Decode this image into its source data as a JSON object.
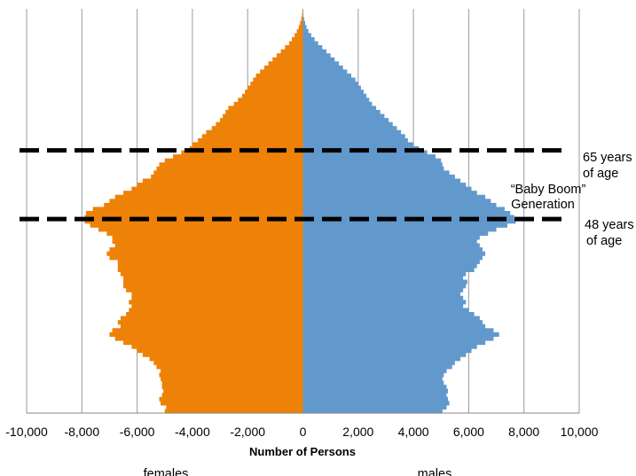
{
  "chart_data": {
    "type": "bar",
    "orientation": "horizontal",
    "title": "",
    "xlabel": "Number of Persons",
    "ylabel": "",
    "xlim": [
      -10000,
      10000
    ],
    "xticks": [
      -10000,
      -8000,
      -6000,
      -4000,
      -2000,
      0,
      2000,
      4000,
      6000,
      8000,
      10000
    ],
    "xtick_labels": [
      "-10,000",
      "-8,000",
      "-6,000",
      "-4,000",
      "-2,000",
      "0",
      "2,000",
      "4,000",
      "6,000",
      "8,000",
      "10,000"
    ],
    "grid": "vertical",
    "legend": "none",
    "side_labels": {
      "left": "females",
      "right": "males"
    },
    "annotations": {
      "line_65": "65 years of age",
      "line_65_lines": [
        "65 years",
        "of age"
      ],
      "line_48": "48 years of age",
      "line_48_lines": [
        "48 years",
        "of age"
      ],
      "baby_boom_lines": [
        "“Baby Boom”",
        "Generation"
      ]
    },
    "reference_lines_age": [
      65,
      48
    ],
    "age_range": [
      0,
      100
    ],
    "series": [
      {
        "name": "females",
        "color": "#ee8208",
        "values": [
          -5000,
          -4950,
          -5150,
          -5200,
          -5100,
          -5050,
          -5100,
          -5100,
          -5150,
          -5200,
          -5150,
          -5300,
          -5400,
          -5550,
          -5800,
          -6000,
          -6200,
          -6500,
          -6800,
          -7000,
          -6900,
          -6600,
          -6700,
          -6600,
          -6400,
          -6300,
          -6200,
          -6300,
          -6200,
          -6200,
          -6400,
          -6500,
          -6500,
          -6500,
          -6600,
          -6700,
          -6700,
          -6700,
          -7000,
          -7100,
          -7000,
          -6800,
          -6900,
          -6900,
          -7100,
          -7400,
          -7700,
          -7900,
          -7900,
          -7850,
          -7600,
          -7200,
          -7000,
          -6800,
          -6500,
          -6200,
          -6000,
          -5800,
          -5500,
          -5400,
          -5300,
          -5200,
          -5000,
          -4700,
          -4400,
          -4100,
          -4000,
          -3800,
          -3650,
          -3500,
          -3300,
          -3150,
          -3000,
          -2900,
          -2800,
          -2700,
          -2500,
          -2350,
          -2200,
          -2100,
          -2000,
          -1900,
          -1800,
          -1700,
          -1550,
          -1400,
          -1250,
          -1100,
          -950,
          -800,
          -650,
          -500,
          -400,
          -300,
          -220,
          -150,
          -100,
          -60,
          -30,
          -10
        ]
      },
      {
        "name": "males",
        "color": "#6299cd",
        "values": [
          5050,
          5200,
          5300,
          5250,
          5200,
          5250,
          5200,
          5100,
          5050,
          5100,
          5200,
          5400,
          5500,
          5700,
          5900,
          6100,
          6300,
          6600,
          6900,
          7100,
          6900,
          6600,
          6500,
          6400,
          6200,
          6000,
          5800,
          5900,
          5800,
          5700,
          5800,
          5900,
          5950,
          5800,
          5900,
          6200,
          6300,
          6400,
          6500,
          6600,
          6500,
          6400,
          6300,
          6400,
          6700,
          7000,
          7400,
          7700,
          7650,
          7500,
          7300,
          7000,
          6800,
          6600,
          6300,
          6100,
          5900,
          5700,
          5500,
          5300,
          5100,
          5050,
          5000,
          4800,
          4500,
          4200,
          4000,
          3800,
          3700,
          3550,
          3400,
          3250,
          3100,
          2950,
          2800,
          2650,
          2500,
          2400,
          2300,
          2200,
          2100,
          2000,
          1900,
          1750,
          1600,
          1450,
          1300,
          1150,
          1000,
          850,
          700,
          550,
          420,
          300,
          200,
          130,
          80,
          40,
          15,
          5
        ]
      }
    ]
  }
}
